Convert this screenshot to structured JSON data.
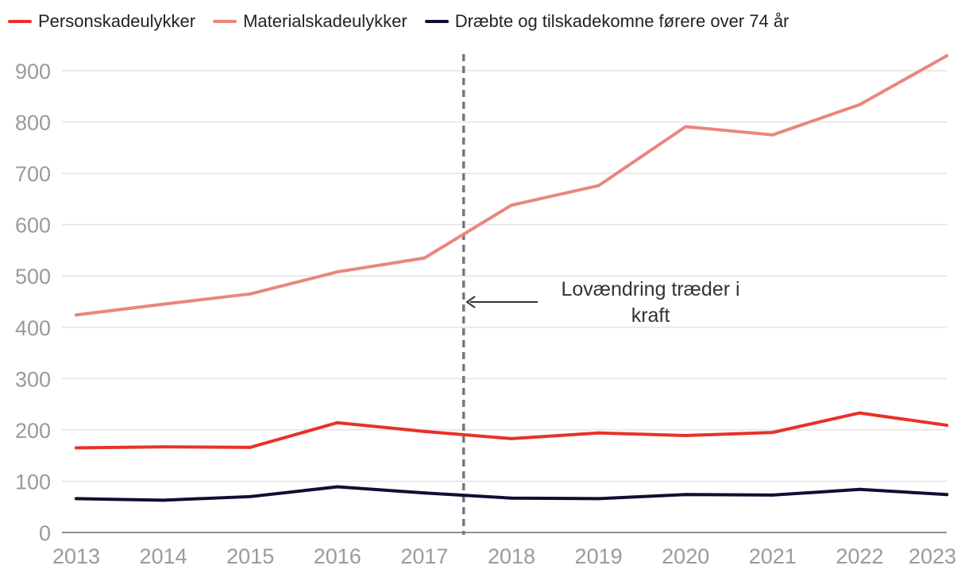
{
  "chart_data": {
    "type": "line",
    "title": "",
    "xlabel": "",
    "ylabel": "",
    "categories": [
      "2013",
      "2014",
      "2015",
      "2016",
      "2017",
      "2018",
      "2019",
      "2020",
      "2021",
      "2022",
      "2023"
    ],
    "ylim": [
      0,
      900
    ],
    "yticks": [
      0,
      100,
      200,
      300,
      400,
      500,
      600,
      700,
      800,
      900
    ],
    "grid": true,
    "legend_position": "top-left",
    "series": [
      {
        "name": "Personskadeulykker",
        "color": "#e8312a",
        "values": [
          165,
          167,
          166,
          214,
          197,
          183,
          194,
          189,
          195,
          233,
          209
        ]
      },
      {
        "name": "Materialskadeulykker",
        "color": "#e8877e",
        "values": [
          424,
          445,
          465,
          508,
          535,
          638,
          676,
          791,
          775,
          834,
          929
        ]
      },
      {
        "name": "Dræbte og tilskadekomne førere over 74 år",
        "color": "#0d0f33",
        "values": [
          66,
          63,
          70,
          89,
          77,
          67,
          66,
          74,
          73,
          84,
          74
        ]
      }
    ],
    "reference_line": {
      "x": 2017.45,
      "style": "dashed",
      "color": "#7a7685"
    },
    "annotation": {
      "line1": "Lovændring træder i",
      "line2": "kraft"
    }
  }
}
